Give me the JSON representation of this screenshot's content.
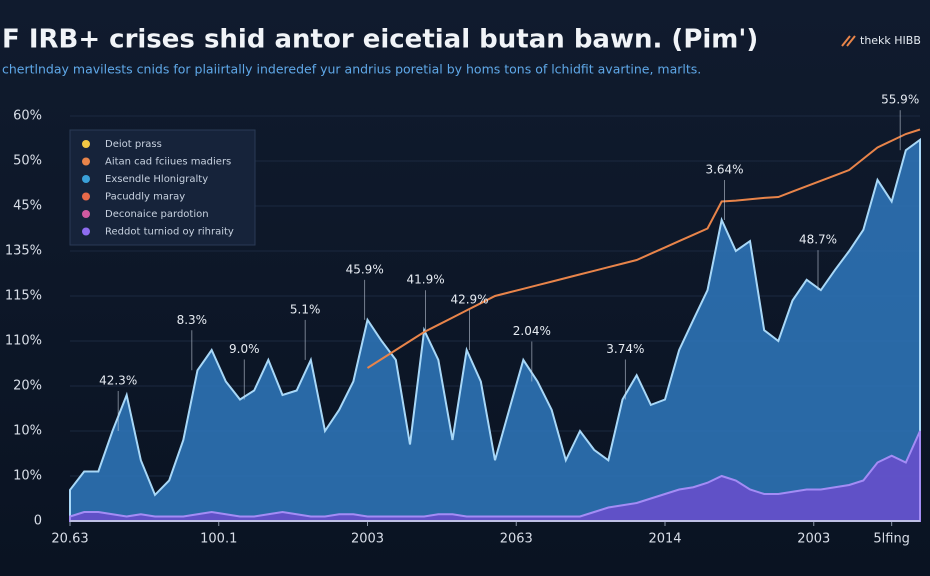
{
  "chart_data": {
    "type": "area",
    "title": "F IRB+ crises shid antor eicetial butan bawn. (Pim')",
    "subtitle": "chertlnday mavilests cnids for plaiirtally inderedef yur andrius poretial by homs tons of lchidfit avartine, marlts.",
    "logo": "thekk HIBB",
    "x": [
      0,
      1,
      2,
      3,
      4,
      5,
      6,
      7,
      8,
      9,
      10,
      11,
      12,
      13,
      14,
      15,
      16,
      17,
      18,
      19,
      20,
      21,
      22,
      23,
      24,
      25,
      26,
      27,
      28,
      29,
      30,
      31,
      32,
      33,
      34,
      35,
      36,
      37,
      38,
      39,
      40,
      41,
      42,
      43,
      44,
      45,
      46,
      47,
      48,
      49,
      50,
      51,
      52,
      53,
      54,
      55,
      56,
      57,
      58,
      59,
      60
    ],
    "xlim": [
      0,
      60
    ],
    "xticks": [
      {
        "value": 0,
        "label": "20.63"
      },
      {
        "value": 10.5,
        "label": "100.1"
      },
      {
        "value": 21,
        "label": "2003"
      },
      {
        "value": 31.5,
        "label": "2063"
      },
      {
        "value": 42,
        "label": "2014"
      },
      {
        "value": 52.5,
        "label": "2003"
      },
      {
        "value": 58,
        "label": "5lfing"
      }
    ],
    "ylim": [
      0,
      100
    ],
    "yticks": [
      0,
      {
        "value": 10,
        "label": "10%"
      },
      {
        "value": 20,
        "label": "10%"
      },
      {
        "value": 30,
        "label": "20%"
      },
      {
        "value": 40,
        "label": "110%"
      },
      {
        "value": 50,
        "label": "115%"
      },
      {
        "value": 60,
        "label": "135%"
      },
      {
        "value": 70,
        "label": "45%"
      },
      {
        "value": 80,
        "label": "50%"
      },
      {
        "value": 90,
        "label": "60%"
      }
    ],
    "series": [
      {
        "color": "#2f78bd",
        "values": [
          6.9,
          11,
          11,
          20,
          28,
          13.5,
          5.8,
          9,
          18,
          33.5,
          38,
          31,
          27,
          29,
          35.8,
          28,
          29,
          35.8,
          20,
          24.7,
          31,
          44.7,
          40,
          35.8,
          17,
          42.4,
          35.8,
          18,
          38,
          31,
          13.5,
          24.7,
          35.8,
          31,
          24.7,
          13.5,
          20,
          15.8,
          13.5,
          27,
          32.4,
          25.8,
          27,
          38,
          44.7,
          51.3,
          66.9,
          60,
          62.2,
          42.4,
          40,
          49,
          53.6,
          51.3,
          55.8,
          60,
          64.7,
          75.8,
          71,
          82.4,
          84.7
        ]
      },
      {
        "color": "#6a4dcc",
        "values": [
          1,
          2,
          2,
          1.5,
          1,
          1.5,
          1,
          1,
          1,
          1.5,
          2,
          1.5,
          1,
          1,
          1.5,
          2,
          1.5,
          1,
          1,
          1.5,
          1.5,
          1,
          1,
          1,
          1,
          1,
          1.5,
          1.5,
          1,
          1,
          1,
          1,
          1,
          1,
          1,
          1,
          1,
          2,
          3,
          3.5,
          4,
          5,
          6,
          7,
          7.5,
          8.5,
          10,
          9,
          7,
          6,
          6,
          6.5,
          7,
          7,
          7.5,
          8,
          9,
          13,
          14.5,
          13,
          20
        ]
      },
      {
        "color": "#e8844a",
        "line": true,
        "values": [
          null,
          null,
          null,
          null,
          null,
          null,
          null,
          null,
          null,
          null,
          null,
          null,
          null,
          null,
          null,
          null,
          null,
          null,
          null,
          null,
          null,
          34,
          36,
          38,
          40,
          42,
          43.6,
          45.2,
          46.8,
          48.4,
          50,
          50.8,
          51.6,
          52.4,
          53.2,
          54,
          54.8,
          55.6,
          56.4,
          57.2,
          58,
          59.4,
          60.8,
          62.2,
          63.6,
          65,
          71,
          71.2,
          71.5,
          71.8,
          72,
          73.2,
          74.4,
          75.6,
          76.8,
          78,
          80.5,
          83,
          84.5,
          86,
          87
        ]
      }
    ],
    "annotations": [
      {
        "text": "42.3%",
        "x": 3.4
      },
      {
        "text": "8.3%",
        "x": 8.6
      },
      {
        "text": "9.0%",
        "x": 12.3
      },
      {
        "text": "5.1%",
        "x": 16.6
      },
      {
        "text": "45.9%",
        "x": 20.8
      },
      {
        "text": "41.9%",
        "x": 25.1
      },
      {
        "text": "42.9%",
        "x": 28.2
      },
      {
        "text": "2.04%",
        "x": 32.6
      },
      {
        "text": "3.74%",
        "x": 39.2
      },
      {
        "text": "3.64%",
        "x": 46.2
      },
      {
        "text": "48.7%",
        "x": 52.8
      },
      {
        "text": "55.9%",
        "x": 58.6
      }
    ],
    "legend": [
      {
        "name": "Deiot prass",
        "color": "#f2c744"
      },
      {
        "name": "Aitan cad fciiues madiers",
        "color": "#e8844a"
      },
      {
        "name": "Exsendle Hlonigralty",
        "color": "#3aa0d8"
      },
      {
        "name": "Pacuddly maray",
        "color": "#e86a4a"
      },
      {
        "name": "Deconaice pardotion",
        "color": "#d05aa0"
      },
      {
        "name": "Reddot turniod oy rihraity",
        "color": "#8e6cf0"
      }
    ]
  }
}
